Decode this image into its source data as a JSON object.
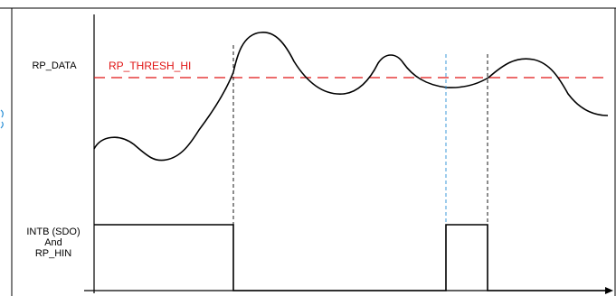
{
  "signals": {
    "rp_data_label": "RP_DATA",
    "threshold_label": "RP_THRESH_HI",
    "intb_label_line1": "INTB (SDO)",
    "intb_label_line2": "And",
    "intb_label_line3": "RP_HIN"
  },
  "colors": {
    "waveform": "#000000",
    "threshold": "#e01414",
    "marker_black": "#000000",
    "marker_blue": "#2a8fd6",
    "left_edge_mark": "#2a8fd6"
  }
}
